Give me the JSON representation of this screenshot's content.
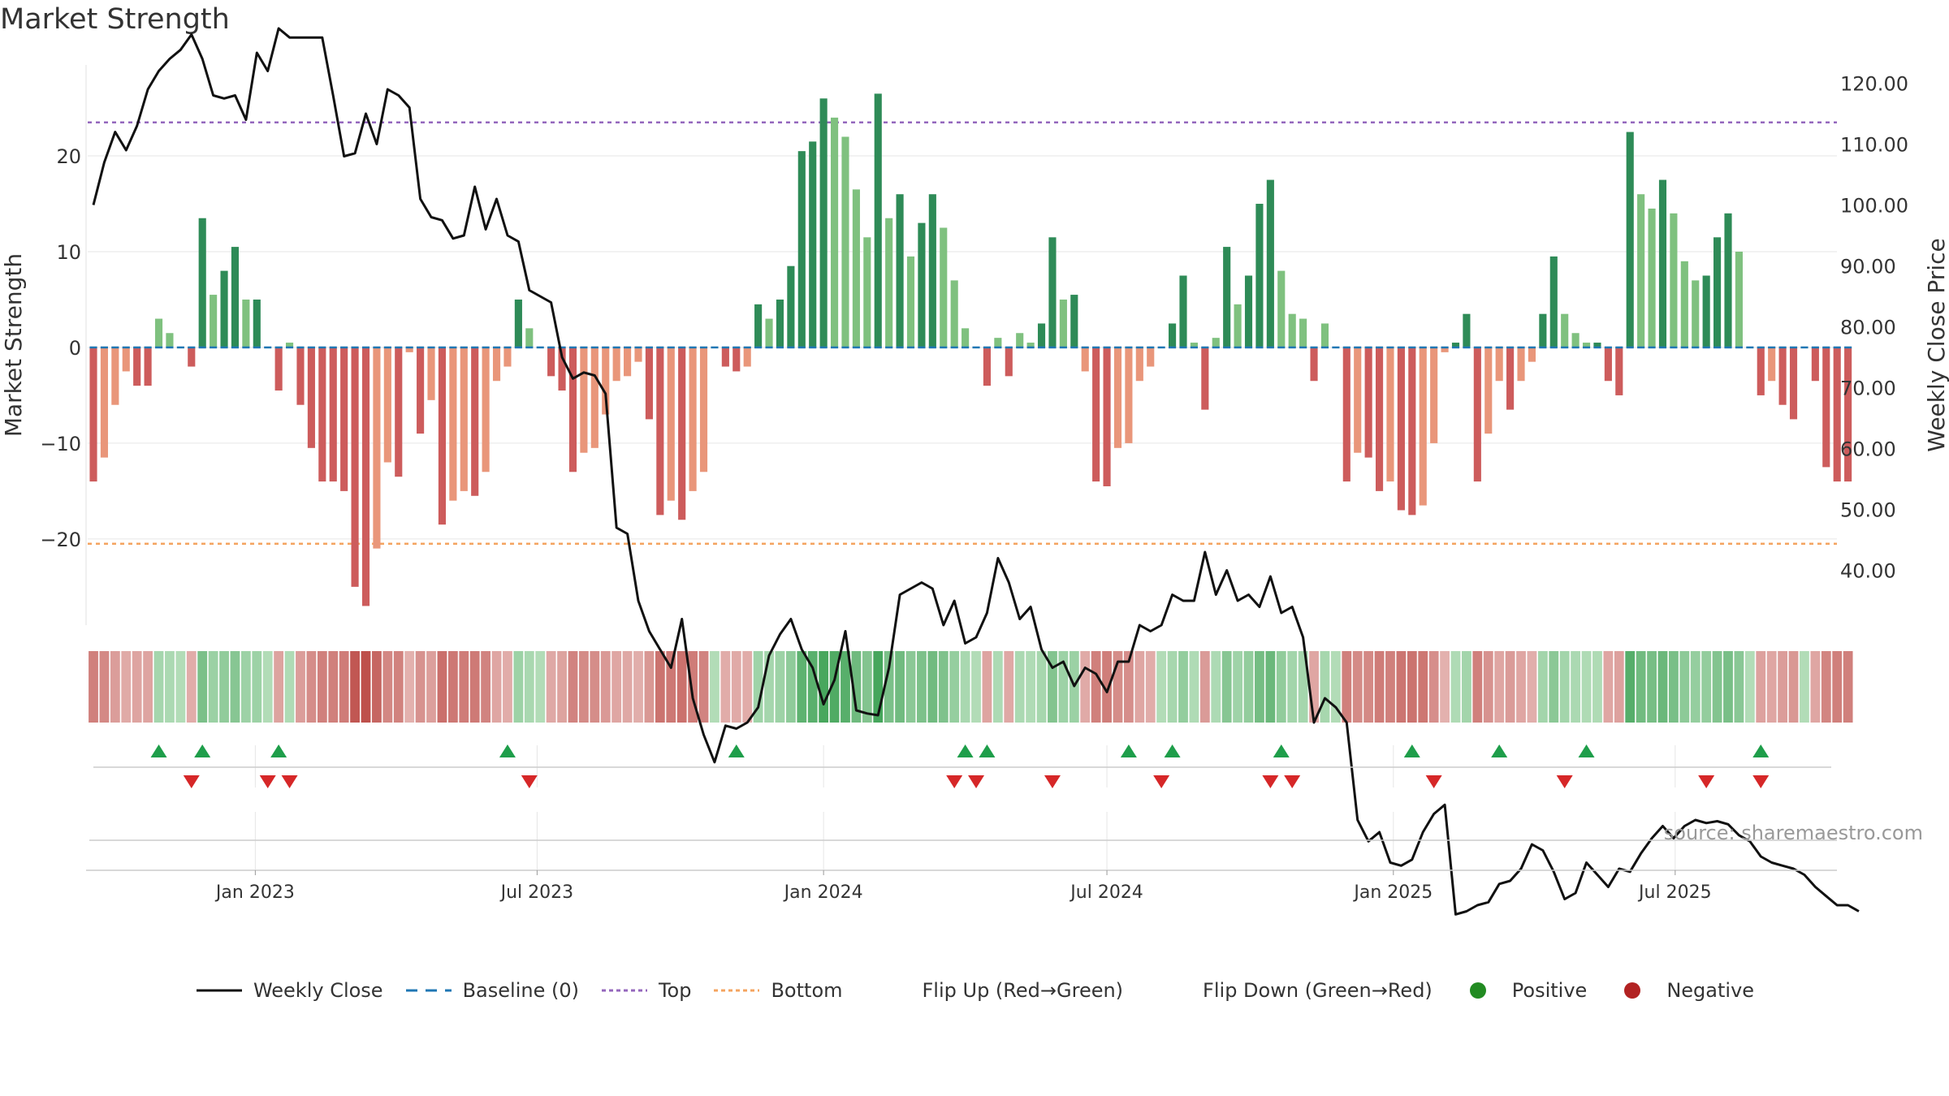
{
  "chart_data": {
    "title": "Market Strength",
    "type": "bar+line",
    "source_note": "source: sharemaestro.com",
    "x_start": "2022-09-19",
    "x_step_days": 7,
    "x_ticks": [
      {
        "date": "2023-01-01",
        "label": "Jan 2023"
      },
      {
        "date": "2023-07-01",
        "label": "Jul 2023"
      },
      {
        "date": "2024-01-01",
        "label": "Jan 2024"
      },
      {
        "date": "2024-07-01",
        "label": "Jul 2024"
      },
      {
        "date": "2025-01-01",
        "label": "Jan 2025"
      },
      {
        "date": "2025-07-01",
        "label": "Jul 2025"
      }
    ],
    "left_axis": {
      "label": "Market Strength",
      "ylim": [
        -29,
        29.5
      ],
      "ticks": [
        -20,
        -10,
        0,
        10,
        20
      ]
    },
    "right_axis": {
      "label": "Weekly Close Price",
      "ylim": [
        31,
        123
      ],
      "ticks": [
        40,
        50,
        60,
        70,
        80,
        90,
        100,
        110,
        120
      ],
      "tick_labels": [
        "40.00",
        "50.00",
        "60.00",
        "70.00",
        "80.00",
        "90.00",
        "100.00",
        "110.00",
        "120.00"
      ]
    },
    "top_line": 23.5,
    "bottom_line": -20.5,
    "strength": [
      -14,
      -11.5,
      -6,
      -2.5,
      -4,
      -4,
      3,
      1.5,
      0,
      -2,
      13.5,
      5.5,
      8,
      10.5,
      5,
      5,
      0,
      -4.5,
      0.5,
      -6,
      -10.5,
      -14,
      -14,
      -15,
      -25,
      -27,
      -21,
      -12,
      -13.5,
      -0.5,
      -9,
      -5.5,
      -18.5,
      -16,
      -15,
      -15.5,
      -13,
      -3.5,
      -2,
      5,
      2,
      0,
      -3,
      -4.5,
      -13,
      -11,
      -10.5,
      -7,
      -3.5,
      -3,
      -1.5,
      -7.5,
      -17.5,
      -16,
      -18,
      -15,
      -13,
      0,
      -2,
      -2.5,
      -2,
      4.5,
      3,
      5,
      8.5,
      20.5,
      21.5,
      26,
      24,
      22,
      16.5,
      11.5,
      26.5,
      13.5,
      16,
      9.5,
      13,
      16,
      12.5,
      7,
      2,
      0,
      -4,
      1,
      -3,
      1.5,
      0.5,
      2.5,
      11.5,
      5,
      5.5,
      -2.5,
      -14,
      -14.5,
      -10.5,
      -10,
      -3.5,
      -2,
      0,
      2.5,
      7.5,
      0.5,
      -6.5,
      1,
      10.5,
      4.5,
      7.5,
      15,
      17.5,
      8,
      3.5,
      3,
      -3.5,
      2.5,
      0,
      -14,
      -11,
      -11.5,
      -15,
      -14,
      -17,
      -17.5,
      -16.5,
      -10,
      -0.5,
      0.5,
      3.5,
      -14,
      -9,
      -3.5,
      -6.5,
      -3.5,
      -1.5,
      3.5,
      9.5,
      3.5,
      1.5,
      0.5,
      0.5,
      -3.5,
      -5,
      22.5,
      16,
      14.5,
      17.5,
      14,
      9,
      7,
      7.5,
      11.5,
      14,
      10,
      0,
      -5,
      -3.5,
      -6,
      -7.5,
      0,
      -3.5,
      -12.5,
      -14,
      -14
    ],
    "close": [
      100,
      107,
      112,
      109,
      113,
      119,
      122,
      124,
      125.5,
      128,
      124,
      118,
      117.5,
      118,
      114,
      125,
      122,
      129,
      127.5,
      127.5,
      127.5,
      127.5,
      118,
      108,
      108.5,
      115,
      110,
      119,
      118,
      116,
      101,
      98,
      97.5,
      94.5,
      95,
      103,
      96,
      101,
      95,
      94,
      86,
      85,
      84,
      75,
      71.5,
      72.5,
      72,
      69,
      47,
      46,
      35,
      30,
      27,
      24,
      32,
      19,
      13,
      8.5,
      14.5,
      14,
      15,
      17.5,
      26,
      29.5,
      32,
      27,
      24,
      18,
      22,
      30,
      17,
      16.5,
      16.2,
      24,
      36,
      37,
      38,
      37,
      31,
      35,
      28,
      29,
      33,
      42,
      38,
      32,
      34,
      27,
      24,
      25,
      21,
      24,
      23,
      20,
      25,
      25,
      31,
      30,
      31,
      36,
      35,
      35,
      43,
      36,
      40,
      35,
      36,
      34,
      39,
      33,
      34,
      29,
      15,
      19,
      17.5,
      15,
      -1,
      -4.5,
      -3,
      -8,
      -8.5,
      -7.5,
      -3,
      0,
      1.5,
      -16.5,
      -16,
      -15,
      -14.5,
      -11.5,
      -11,
      -9,
      -5,
      -6,
      -9.5,
      -14,
      -13,
      -8,
      -10,
      -12,
      -9,
      -9.5,
      -6.5,
      -4,
      -2,
      -4,
      -2,
      -1,
      -1.5,
      -1.2,
      -1.7,
      -3.5,
      -4.5,
      -7,
      -8,
      -8.5,
      -9,
      -10,
      -12,
      -13.5,
      -15,
      -15,
      -16
    ],
    "flip_up_weeks": [
      6,
      10,
      17,
      38,
      59,
      80,
      82,
      95,
      99,
      109,
      121,
      129,
      137,
      153
    ],
    "flip_down_weeks": [
      9,
      16,
      18,
      40,
      79,
      81,
      88,
      98,
      108,
      110,
      123,
      135,
      148,
      153
    ],
    "legend": [
      {
        "key": "close",
        "label": "Weekly Close"
      },
      {
        "key": "baseline",
        "label": "Baseline (0)"
      },
      {
        "key": "top",
        "label": "Top"
      },
      {
        "key": "bottom",
        "label": "Bottom"
      },
      {
        "key": "flip_up",
        "label": "Flip Up (Red→Green)"
      },
      {
        "key": "flip_down",
        "label": "Flip Down (Green→Red)"
      },
      {
        "key": "positive",
        "label": "Positive"
      },
      {
        "key": "negative",
        "label": "Negative"
      }
    ],
    "colors": {
      "pos_strong": "#2e8b57",
      "pos_weak": "#7fc17f",
      "neg_strong": "#cd5c5c",
      "neg_weak": "#e9967a",
      "close": "#111111",
      "baseline": "#1f77b4",
      "top": "#9467bd",
      "bottom": "#f4a460",
      "flip_up": "#1e9e4a",
      "flip_down": "#d62728",
      "positive": "#228b22",
      "negative": "#b22222",
      "grid": "#e6e6e6"
    }
  }
}
